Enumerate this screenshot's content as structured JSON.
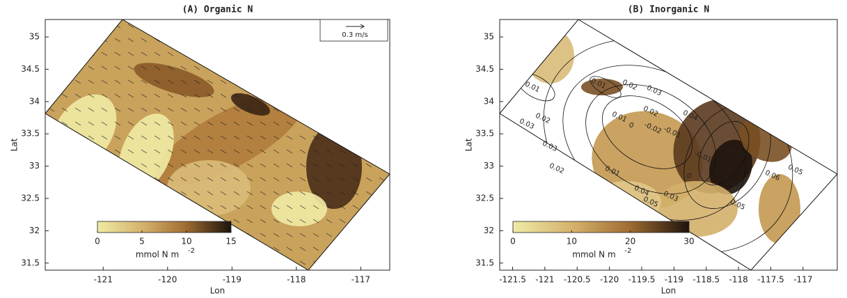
{
  "chart_data": [
    {
      "type": "map",
      "title": "(A) Organic N",
      "xlabel": "Lon",
      "ylabel": "Lat",
      "xlim": [
        -121.9,
        -116.55
      ],
      "ylim": [
        31.39,
        35.27
      ],
      "xticks": [
        -121,
        -120,
        -119,
        -118,
        -117
      ],
      "yticks": [
        31.5,
        32,
        32.5,
        33,
        33.5,
        34,
        34.5,
        35
      ],
      "colorbar": {
        "label": "mmol N m",
        "label_exponent": "-2",
        "lim": [
          0,
          15
        ],
        "ticks": [
          0,
          5,
          10,
          15
        ]
      },
      "vector_key": "0.3 m/s"
    },
    {
      "type": "map",
      "title": "(B) Inorganic N",
      "xlabel": "Lon",
      "ylabel": "Lat",
      "xlim": [
        -121.7,
        -116.47
      ],
      "ylim": [
        31.39,
        35.27
      ],
      "xticks": [
        -121.5,
        -121,
        -120.5,
        -120,
        -119.5,
        -119,
        -118.5,
        -118,
        -117.5,
        -117
      ],
      "yticks": [
        31.5,
        32,
        32.5,
        33,
        33.5,
        34,
        34.5,
        35
      ],
      "colorbar": {
        "label": "mmol N m",
        "label_exponent": "-2",
        "lim": [
          0,
          30
        ],
        "ticks": [
          0,
          10,
          20,
          30
        ]
      },
      "contour_labels": [
        "0.01",
        "0.01",
        "0.02",
        "0.03",
        "0.02",
        "0.04",
        "0.01",
        "0",
        "-0.02",
        "-0.01",
        "0.03",
        "0.02",
        "0.03",
        "0.02",
        "0.01",
        "0",
        "0.04",
        "0.03",
        "0.05",
        "0.04",
        "0.05",
        "0.06",
        "0.05",
        "-0.01",
        "-0.02"
      ]
    }
  ]
}
